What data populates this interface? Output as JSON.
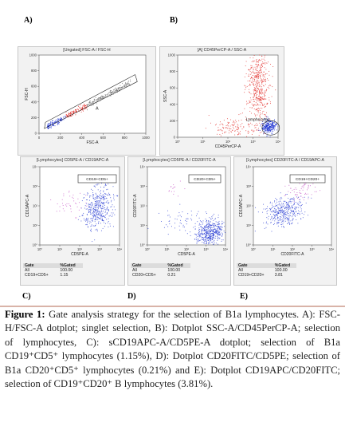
{
  "panel_labels": [
    "A)",
    "B)",
    "C)",
    "D)",
    "E)"
  ],
  "chart_data": [
    {
      "type": "scatter",
      "title": "[Ungated] FSC-A / FSC-H",
      "xlabel": "FSC-A",
      "ylabel": "FSC-H",
      "xlim": [
        0,
        1000
      ],
      "ylim": [
        0,
        1000
      ],
      "x_ticks": [
        "0",
        "200",
        "400",
        "600",
        "800",
        "1000"
      ],
      "y_ticks": [
        "0",
        "200",
        "400",
        "600",
        "800",
        "1000"
      ],
      "gate_label": "A",
      "description_points": "diagonal singlet population along x=y"
    },
    {
      "type": "scatter",
      "title": "[A] CD45PerCP-A / SSC-A",
      "xlabel": "CD45PerCP-A",
      "ylabel": "SSC-A",
      "xscale": "log",
      "x_ticks": [
        "10⁰",
        "10¹",
        "10²",
        "10³",
        "10⁴"
      ],
      "y_ticks": [
        "0",
        "200",
        "400",
        "600",
        "800",
        "1000"
      ],
      "ylim": [
        0,
        1000
      ],
      "gate_label": "Lymphocytes"
    },
    {
      "type": "scatter",
      "title": "[Lymphocytes] CD5PE-A / CD19APC-A",
      "xlabel": "CD5PE-A",
      "ylabel": "CD19APC-A",
      "xscale": "log",
      "yscale": "log",
      "x_ticks": [
        "10⁰",
        "10¹",
        "10²",
        "10³",
        "10⁴"
      ],
      "y_ticks": [
        "10⁰",
        "10¹",
        "10²",
        "10³",
        "10⁴"
      ],
      "gate_label": "CD19+CD5+",
      "stats": {
        "headers": [
          "Gate",
          "%Gated"
        ],
        "rows": [
          [
            "All",
            "100.00"
          ],
          [
            "CD19+CD5+",
            "1.15"
          ]
        ]
      }
    },
    {
      "type": "scatter",
      "title": "[Lymphocytes] CD5PE-A / CD20FITC-A",
      "xlabel": "CD5PE-A",
      "ylabel": "CD20FITC-A",
      "xscale": "log",
      "yscale": "log",
      "x_ticks": [
        "10⁰",
        "10¹",
        "10²",
        "10³",
        "10⁴"
      ],
      "y_ticks": [
        "10⁰",
        "10¹",
        "10²",
        "10³",
        "10⁴"
      ],
      "gate_label": "CD20+CD5+",
      "stats": {
        "headers": [
          "Gate",
          "%Gated"
        ],
        "rows": [
          [
            "All",
            "100.00"
          ],
          [
            "CD20+CD5+",
            "0.21"
          ]
        ]
      }
    },
    {
      "type": "scatter",
      "title": "[Lymphocytes] CD20FITC-A / CD19APC-A",
      "xlabel": "CD20FITC-A",
      "ylabel": "CD19APC-A",
      "xscale": "log",
      "yscale": "log",
      "x_ticks": [
        "10⁰",
        "10¹",
        "10²",
        "10³",
        "10⁴"
      ],
      "y_ticks": [
        "10⁰",
        "10¹",
        "10²",
        "10³",
        "10⁴"
      ],
      "gate_label": "CD19+CD20+",
      "stats": {
        "headers": [
          "Gate",
          "%Gated"
        ],
        "rows": [
          [
            "All",
            "100.00"
          ],
          [
            "CD19+CD20+",
            "3.81"
          ]
        ]
      }
    }
  ],
  "caption": {
    "lead": "Figure 1:",
    "text": "Gate analysis strategy for the selection of B1a lymphocytes. A): FSC-H/FSC-A dotplot; singlet selection, B): Dotplot SSC-A/CD45PerCP-A; selection of lymphocytes, C): sCD19APC-A/CD5PE-A dotplot; selection of B1a CD19⁺CD5⁺ lymphocytes (1.15%), D): Dotplot CD20FITC/CD5PE; selection of B1a CD20⁺CD5⁺ lymphocytes (0.21%) and E): Dotplot CD19APC/CD20FITC; selection of CD19⁺CD20⁺ B lymphocytes (3.81%)."
  },
  "colors": {
    "red": "#e0201c",
    "blue": "#1a2fd0",
    "magenta": "#c040c0",
    "gate": "#222222"
  }
}
